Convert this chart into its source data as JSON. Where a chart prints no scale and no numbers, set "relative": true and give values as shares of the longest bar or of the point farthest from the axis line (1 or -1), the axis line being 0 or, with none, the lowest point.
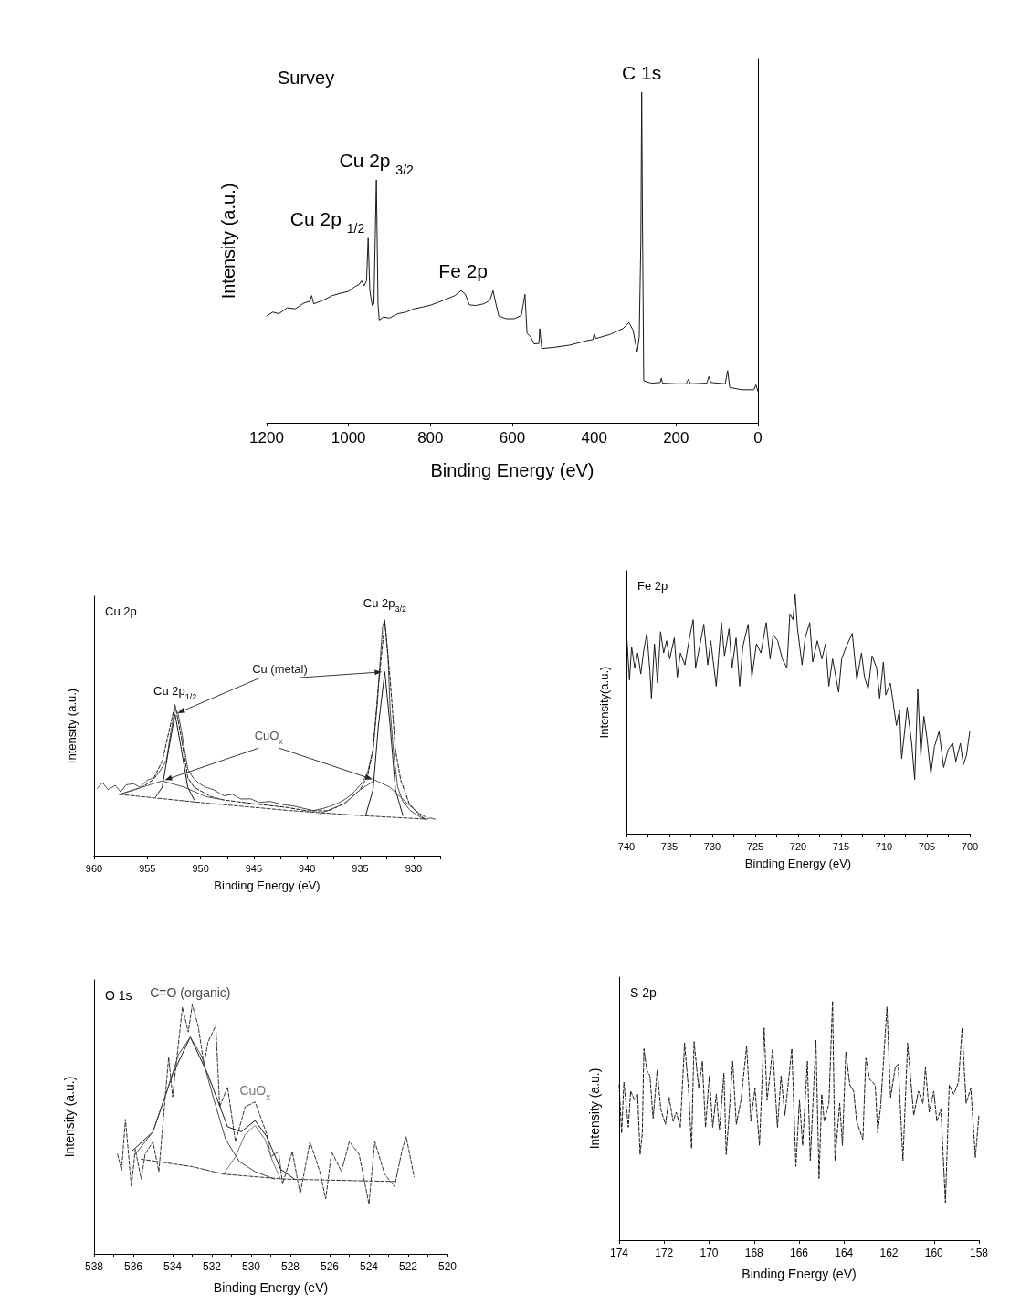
{
  "chart_data": [
    {
      "type": "line",
      "title": "Survey",
      "xlabel": "Binding Energy (eV)",
      "ylabel": "Intensity (a.u.)",
      "relative": true,
      "xlim": [
        1200,
        0
      ],
      "xticks": [
        1200,
        1000,
        800,
        600,
        400,
        200,
        0
      ],
      "series": [
        {
          "color": "#1a1a1a",
          "x": [
            1200,
            1185,
            1170,
            1150,
            1130,
            1110,
            1095,
            1090,
            1085,
            1060,
            1040,
            1020,
            1000,
            985,
            975,
            968,
            962,
            956,
            952,
            948,
            942,
            938,
            932,
            928,
            925,
            915,
            900,
            880,
            860,
            840,
            820,
            800,
            780,
            760,
            740,
            725,
            715,
            705,
            690,
            670,
            655,
            647,
            640,
            633,
            615,
            595,
            578,
            569,
            564,
            555,
            547,
            535,
            533,
            528,
            500,
            460,
            420,
            403,
            400,
            396,
            360,
            330,
            315,
            305,
            295,
            290,
            286,
            284,
            282,
            279,
            260,
            239,
            236,
            233,
            200,
            175,
            170,
            165,
            125,
            120,
            115,
            80,
            74,
            69,
            40,
            10,
            5,
            0
          ],
          "values": [
            0.323,
            0.335,
            0.33,
            0.348,
            0.345,
            0.362,
            0.368,
            0.385,
            0.36,
            0.372,
            0.385,
            0.392,
            0.398,
            0.412,
            0.418,
            0.43,
            0.415,
            0.43,
            0.559,
            0.4,
            0.355,
            0.36,
            0.735,
            0.36,
            0.311,
            0.32,
            0.317,
            0.33,
            0.335,
            0.345,
            0.35,
            0.356,
            0.365,
            0.375,
            0.385,
            0.4,
            0.39,
            0.357,
            0.355,
            0.36,
            0.37,
            0.4,
            0.36,
            0.323,
            0.315,
            0.315,
            0.325,
            0.389,
            0.271,
            0.26,
            0.239,
            0.24,
            0.285,
            0.225,
            0.228,
            0.235,
            0.248,
            0.252,
            0.27,
            0.255,
            0.268,
            0.285,
            0.303,
            0.28,
            0.213,
            0.26,
            0.55,
            1.0,
            0.6,
            0.127,
            0.12,
            0.122,
            0.135,
            0.12,
            0.118,
            0.118,
            0.132,
            0.118,
            0.12,
            0.14,
            0.122,
            0.118,
            0.158,
            0.107,
            0.1,
            0.1,
            0.115,
            0.095
          ]
        }
      ],
      "annotations": [
        {
          "text": "Cu 2p $_{1/2}$",
          "x": 952,
          "y": 0.559
        },
        {
          "text": "Cu 2p $_{3/2}$",
          "x": 932,
          "y": 0.735
        },
        {
          "text": "Fe 2p",
          "x": 720,
          "y": 0.4
        },
        {
          "text": "C 1s",
          "x": 284,
          "y": 1.0
        }
      ]
    },
    {
      "type": "line",
      "title": "Cu 2p",
      "xlabel": "Binding Energy (eV)",
      "ylabel": "Intensity (a.u.)",
      "relative": true,
      "xlim": [
        960,
        927.5
      ],
      "xticks": [
        960,
        {
          "value": 957.5,
          "label": null
        },
        955,
        {
          "value": 952.5,
          "label": null
        },
        950,
        {
          "value": 947.5,
          "label": null
        },
        945,
        {
          "value": 942.5,
          "label": null
        },
        940,
        {
          "value": 937.5,
          "label": null
        },
        935,
        {
          "value": 932.5,
          "label": null
        },
        930,
        {
          "value": 927.5,
          "label": null
        }
      ],
      "series": [
        {
          "color": "#333333",
          "line_style": "dotted",
          "x": [
            959.7,
            959.2,
            958.7,
            958.0,
            957.5,
            957.0,
            956.3,
            955.7,
            955.0,
            954.3,
            953.8,
            953.2,
            952.8,
            952.4,
            952.1,
            951.8,
            951.2,
            950.7,
            950.1,
            949.5,
            948.8,
            947.8,
            947.0,
            946.2,
            945.3,
            944.5,
            943.5,
            942.2,
            941.2,
            940.3,
            939.4,
            938.5,
            937.8,
            937.1,
            936.4,
            935.8,
            935.4,
            934.8,
            934.3,
            933.8,
            933.4,
            933.1,
            932.9,
            932.7,
            932.4,
            932.2,
            931.9,
            931.5,
            931.0,
            930.3,
            929.6,
            928.9,
            928.4,
            927.9
          ],
          "values": [
            0.285,
            0.31,
            0.28,
            0.298,
            0.27,
            0.3,
            0.305,
            0.29,
            0.32,
            0.33,
            0.36,
            0.405,
            0.52,
            0.626,
            0.6,
            0.531,
            0.367,
            0.33,
            0.305,
            0.29,
            0.28,
            0.254,
            0.26,
            0.24,
            0.241,
            0.225,
            0.23,
            0.216,
            0.21,
            0.2,
            0.191,
            0.2,
            0.21,
            0.222,
            0.24,
            0.26,
            0.279,
            0.31,
            0.355,
            0.45,
            0.645,
            0.85,
            0.973,
            1.0,
            0.85,
            0.62,
            0.45,
            0.292,
            0.23,
            0.191,
            0.17,
            0.153,
            0.16,
            0.153
          ]
        },
        {
          "color": "#1a1a1a",
          "line_style": "dashed",
          "x": [
            957.6,
            955.5,
            954.5,
            953.6,
            953.0,
            952.4,
            951.8,
            951.2,
            950.6,
            949,
            947.8,
            945,
            942,
            940,
            938,
            936.5,
            935,
            934.3,
            933.8,
            933.3,
            932.7,
            932.2,
            931.7,
            931.2,
            930.4,
            929.5,
            928.9
          ],
          "values": [
            0.26,
            0.29,
            0.32,
            0.4,
            0.52,
            0.64,
            0.5,
            0.33,
            0.29,
            0.25,
            0.236,
            0.22,
            0.205,
            0.19,
            0.19,
            0.22,
            0.28,
            0.34,
            0.45,
            0.72,
            0.99,
            0.75,
            0.45,
            0.32,
            0.22,
            0.175,
            0.155
          ]
        },
        {
          "name": "Cu (metal)",
          "color": "#1a1a1a",
          "line_style": "solid",
          "x": [
            954.2,
            953.6,
            953.0,
            952.4,
            951.8,
            951.2,
            950.6,
            942,
            934.5,
            933.8,
            933.3,
            932.7,
            932.2,
            931.7,
            931.0
          ],
          "values": [
            0.25,
            0.29,
            0.45,
            0.6,
            0.45,
            0.29,
            0.236,
            null,
            0.17,
            0.28,
            0.55,
            0.78,
            0.55,
            0.28,
            0.17
          ]
        },
        {
          "name": "CuO$_{x}$",
          "color": "#555555",
          "line_style": "solid",
          "x": [
            957.6,
            955.5,
            953.6,
            951.5,
            949.5,
            947.8,
            943,
            938.8,
            936.5,
            935,
            933.6,
            932.2,
            930.8,
            929.5,
            928.9
          ],
          "values": [
            0.26,
            0.29,
            0.317,
            0.29,
            0.25,
            0.236,
            null,
            0.178,
            0.22,
            0.28,
            0.32,
            0.29,
            0.23,
            0.18,
            0.165
          ]
        },
        {
          "color": "#333333",
          "line_style": "dashed",
          "x": [
            957.6,
            950,
            941.6,
            935,
            928.9
          ],
          "values": [
            0.26,
            0.225,
            0.191,
            0.17,
            0.155
          ]
        }
      ],
      "annotations": [
        {
          "text": "Cu 2p$_{1/2}$",
          "x": 952.4,
          "y": 0.626
        },
        {
          "text": "Cu 2p$_{3/2}$",
          "x": 932.7,
          "y": 1.0
        }
      ]
    },
    {
      "type": "line",
      "title": "Fe 2p",
      "xlabel": "Binding Energy (eV)",
      "ylabel": "Intensity(a.u.)",
      "relative": true,
      "xlim": [
        740,
        700
      ],
      "xticks": [
        740,
        {
          "value": 737.5,
          "label": null
        },
        735,
        {
          "value": 732.5,
          "label": null
        },
        730,
        {
          "value": 727.5,
          "label": null
        },
        725,
        {
          "value": 722.5,
          "label": null
        },
        720,
        {
          "value": 717.5,
          "label": null
        },
        715,
        {
          "value": 712.5,
          "label": null
        },
        710,
        {
          "value": 707.5,
          "label": null
        },
        705,
        {
          "value": 702.5,
          "label": null
        },
        700
      ],
      "series": [
        {
          "color": "#1a1a1a",
          "line_style": "solid",
          "x": [
            739.93,
            739.65,
            739.4,
            739.04,
            738.69,
            738.33,
            737.98,
            737.62,
            737.27,
            737.09,
            736.74,
            736.38,
            736.03,
            735.67,
            735.32,
            734.96,
            734.43,
            734.08,
            733.72,
            733.19,
            732.66,
            732.23,
            731.95,
            731.42,
            730.99,
            730.53,
            730.18,
            729.54,
            729.29,
            728.94,
            728.58,
            728.05,
            727.7,
            727.23,
            726.81,
            726.45,
            725.82,
            725.39,
            724.86,
            724.33,
            723.72,
            723.26,
            722.91,
            722.38,
            721.84,
            721.31,
            720.96,
            720.6,
            720.35,
            720.07,
            719.54,
            719.18,
            718.65,
            718.3,
            717.77,
            717.23,
            716.81,
            716.42,
            715.99,
            715.28,
            714.93,
            714.4,
            713.69,
            713.16,
            712.62,
            712.27,
            711.84,
            711.38,
            710.85,
            710.5,
            710.07,
            709.79,
            709.26,
            708.9,
            708.55,
            708.19,
            707.94,
            707.59,
            707.3,
            706.77,
            706.42,
            706.06,
            705.71,
            705.35,
            705.0,
            704.54,
            704.11,
            703.58,
            703.05,
            702.52,
            701.99,
            701.63,
            701.1,
            700.74,
            700.39,
            700.0
          ],
          "values": [
            0.807,
            0.643,
            0.782,
            0.693,
            0.756,
            0.668,
            0.769,
            0.838,
            0.681,
            0.567,
            0.794,
            0.63,
            0.845,
            0.756,
            0.807,
            0.731,
            0.819,
            0.655,
            0.756,
            0.706,
            0.819,
            0.895,
            0.693,
            0.794,
            0.876,
            0.706,
            0.807,
            0.617,
            0.731,
            0.883,
            0.744,
            0.857,
            0.693,
            0.819,
            0.617,
            0.782,
            0.876,
            0.655,
            0.794,
            0.756,
            0.883,
            0.731,
            0.832,
            0.807,
            0.731,
            0.693,
            0.92,
            0.895,
            1.0,
            0.857,
            0.706,
            0.819,
            0.883,
            0.718,
            0.807,
            0.731,
            0.794,
            0.617,
            0.731,
            0.592,
            0.731,
            0.782,
            0.838,
            0.643,
            0.756,
            0.655,
            0.605,
            0.744,
            0.693,
            0.567,
            0.718,
            0.58,
            0.63,
            0.542,
            0.453,
            0.516,
            0.314,
            0.428,
            0.529,
            0.378,
            0.226,
            0.605,
            0.327,
            0.491,
            0.403,
            0.251,
            0.365,
            0.428,
            0.277,
            0.352,
            0.378,
            0.302,
            0.378,
            0.289,
            0.327,
            0.428
          ]
        }
      ]
    },
    {
      "type": "line",
      "title": "O 1s",
      "xlabel": "Binding Energy (eV)",
      "ylabel": "Intensity (a.u.)",
      "relative": true,
      "xlim": [
        538,
        520
      ],
      "xticks": [
        538,
        {
          "value": 537,
          "label": null
        },
        536,
        {
          "value": 535,
          "label": null
        },
        534,
        {
          "value": 533,
          "label": null
        },
        532,
        {
          "value": 531,
          "label": null
        },
        530,
        {
          "value": 529,
          "label": null
        },
        528,
        {
          "value": 527,
          "label": null
        },
        526,
        {
          "value": 525,
          "label": null
        },
        524,
        {
          "value": 523,
          "label": null
        },
        522,
        {
          "value": 521,
          "label": null
        },
        520
      ],
      "series": [
        {
          "color": "#333333",
          "line_style": "dashed",
          "x": [
            536.8,
            536.6,
            536.4,
            536.1,
            535.9,
            535.6,
            535.4,
            535.0,
            534.7,
            534.2,
            534.0,
            533.5,
            533.2,
            533.0,
            532.7,
            532.4,
            532.2,
            531.8,
            531.6,
            531.2,
            530.8,
            530.3,
            529.8,
            529.2,
            529.0,
            528.6,
            528.4,
            527.9,
            527.5,
            527.0,
            526.5,
            526.2,
            525.9,
            525.4,
            525.0,
            524.5,
            524.0,
            523.7,
            523.2,
            522.7,
            522.3,
            522.1,
            521.7
          ],
          "values": [
            0.4,
            0.335,
            0.54,
            0.27,
            0.42,
            0.3,
            0.4,
            0.45,
            0.33,
            0.79,
            0.63,
            0.99,
            0.89,
            1.0,
            0.916,
            0.76,
            0.85,
            0.916,
            0.59,
            0.67,
            0.45,
            0.59,
            0.61,
            0.48,
            0.39,
            0.41,
            0.28,
            0.41,
            0.24,
            0.45,
            0.33,
            0.22,
            0.41,
            0.33,
            0.45,
            0.4,
            0.2,
            0.45,
            0.32,
            0.27,
            0.42,
            0.47,
            0.31
          ]
        },
        {
          "color": "#1a1a1a",
          "line_style": "solid",
          "x": [
            536.1,
            535,
            534,
            533.1,
            532.2,
            531.2,
            530.5,
            529.8,
            529.2,
            528.5,
            527.8
          ],
          "values": [
            0.41,
            0.49,
            0.72,
            0.87,
            0.72,
            0.51,
            0.49,
            0.535,
            0.47,
            0.34,
            0.3
          ]
        },
        {
          "name": "C=O (organic)",
          "color": "#4a4a4a",
          "line_style": "solid",
          "x": [
            535.9,
            535,
            534.3,
            533.7,
            533.1,
            532.5,
            531.9,
            531.3,
            530.6,
            529.8,
            528.8
          ],
          "values": [
            0.4,
            0.49,
            0.65,
            0.8,
            0.87,
            0.79,
            0.62,
            0.46,
            0.37,
            0.33,
            0.3
          ]
        },
        {
          "name": "CuO$_{x}$",
          "color": "#777777",
          "line_style": "solid",
          "x": [
            531.4,
            530.8,
            530.3,
            529.8,
            529.3,
            528.9,
            528.5
          ],
          "values": [
            0.32,
            0.39,
            0.48,
            0.515,
            0.46,
            0.37,
            0.3
          ]
        },
        {
          "color": "#333333",
          "line_style": "dashed",
          "x": [
            535.6,
            533,
            531.4,
            528.3,
            522.6
          ],
          "values": [
            0.38,
            0.35,
            0.32,
            0.3,
            0.29
          ]
        }
      ]
    },
    {
      "type": "line",
      "title": "S 2p",
      "xlabel": "Binding Energy (eV)",
      "ylabel": "Intensity (a.u.)",
      "relative": true,
      "xlim": [
        174,
        158
      ],
      "xticks": [
        174,
        172,
        170,
        168,
        166,
        164,
        162,
        160,
        158
      ],
      "series": [
        {
          "color": "#1a1a1a",
          "line_style": "dashed",
          "x": [
            174.0,
            173.89,
            173.79,
            173.59,
            173.49,
            173.31,
            173.18,
            173.07,
            172.97,
            172.9,
            172.77,
            172.63,
            172.49,
            172.31,
            172.15,
            171.94,
            171.78,
            171.6,
            171.46,
            171.28,
            171.09,
            170.91,
            170.78,
            170.67,
            170.46,
            170.3,
            170.16,
            169.99,
            169.84,
            169.68,
            169.54,
            169.34,
            169.24,
            169.13,
            168.95,
            168.79,
            168.58,
            168.33,
            168.14,
            167.96,
            167.76,
            167.55,
            167.42,
            167.17,
            166.96,
            166.8,
            166.63,
            166.32,
            166.14,
            165.98,
            165.84,
            165.63,
            165.5,
            165.25,
            165.11,
            164.99,
            164.88,
            164.67,
            164.51,
            164.4,
            164.19,
            164.07,
            163.92,
            163.74,
            163.57,
            163.44,
            163.16,
            163.03,
            162.86,
            162.61,
            162.5,
            162.37,
            162.09,
            161.93,
            161.72,
            161.59,
            161.38,
            161.17,
            160.9,
            160.69,
            160.49,
            160.38,
            160.21,
            160.01,
            159.87,
            159.69,
            159.49,
            159.32,
            159.12,
            158.91,
            158.75,
            158.57,
            158.36,
            158.16,
            158.0
          ],
          "values": [
            0.648,
            0.447,
            0.66,
            0.472,
            0.623,
            0.585,
            0.61,
            0.358,
            0.447,
            0.8,
            0.711,
            0.686,
            0.509,
            0.711,
            0.547,
            0.484,
            0.597,
            0.497,
            0.535,
            0.472,
            0.824,
            0.623,
            0.384,
            0.83,
            0.635,
            0.748,
            0.472,
            0.686,
            0.472,
            0.61,
            0.459,
            0.698,
            0.358,
            0.497,
            0.748,
            0.484,
            0.585,
            0.811,
            0.497,
            0.635,
            0.396,
            0.887,
            0.585,
            0.8,
            0.472,
            0.686,
            0.522,
            0.8,
            0.308,
            0.585,
            0.396,
            0.748,
            0.333,
            0.836,
            0.258,
            0.61,
            0.497,
            0.572,
            1.0,
            0.333,
            0.572,
            0.396,
            0.786,
            0.648,
            0.623,
            0.497,
            0.421,
            0.761,
            0.673,
            0.648,
            0.447,
            0.56,
            0.975,
            0.597,
            0.723,
            0.736,
            0.333,
            0.824,
            0.522,
            0.623,
            0.572,
            0.723,
            0.535,
            0.623,
            0.497,
            0.547,
            0.157,
            0.648,
            0.61,
            0.66,
            0.887,
            0.572,
            0.635,
            0.346,
            0.522
          ]
        }
      ]
    }
  ]
}
